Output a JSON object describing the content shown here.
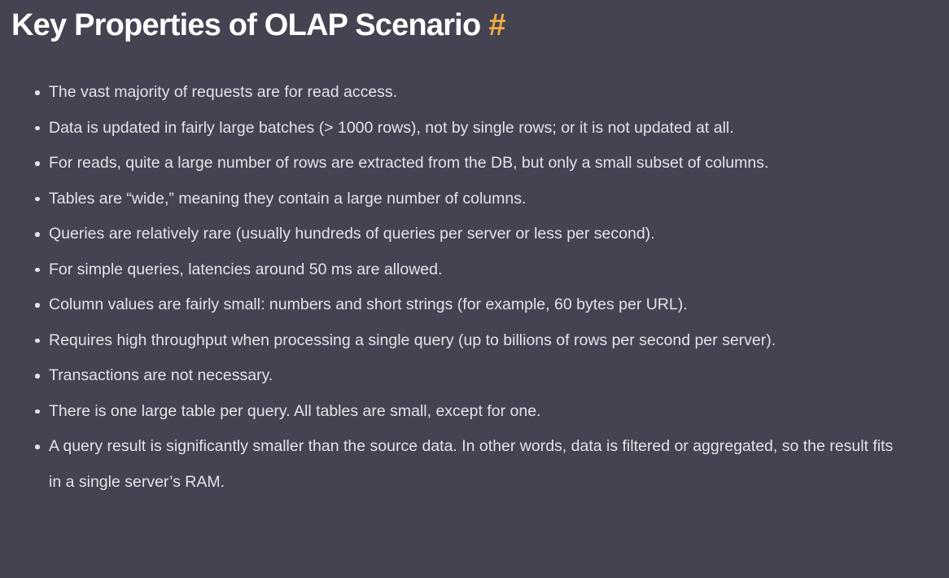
{
  "theme": {
    "background": "#454251",
    "heading_text": "#ffffff",
    "body_text": "#e3e2e9",
    "anchor": "#efac43"
  },
  "page": {
    "heading": {
      "title": "Key Properties of OLAP Scenario",
      "anchor": "#"
    },
    "list": {
      "items": [
        "The vast majority of requests are for read access.",
        "Data is updated in fairly large batches (> 1000 rows), not by single rows; or it is not updated at all.",
        "For reads, quite a large number of rows are extracted from the DB, but only a small subset of columns.",
        "Tables are “wide,” meaning they contain a large number of columns.",
        "Queries are relatively rare (usually hundreds of queries per server or less per second).",
        "For simple queries, latencies around 50 ms are allowed.",
        "Column values are fairly small: numbers and short strings (for example, 60 bytes per URL).",
        "Requires high throughput when processing a single query (up to billions of rows per second per server).",
        "Transactions are not necessary.",
        "There is one large table per query. All tables are small, except for one.",
        "A query result is significantly smaller than the source data. In other words, data is filtered or aggregated, so the result fits in a single server’s RAM."
      ]
    }
  }
}
